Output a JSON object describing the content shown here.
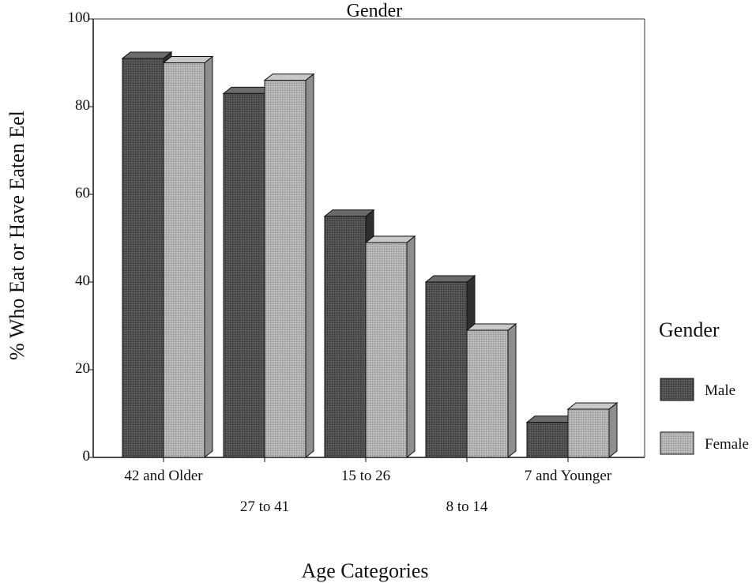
{
  "chart_data": {
    "type": "bar",
    "title": "Gender",
    "xlabel": "Age Categories",
    "ylabel": "% Who Eat or Have Eaten Eel",
    "ylim": [
      0,
      100
    ],
    "yticks": [
      "0",
      "20",
      "40",
      "60",
      "80",
      "100"
    ],
    "categories": [
      "42 and Older",
      "27 to 41",
      "15 to 26",
      "8 to 14",
      "7 and Younger"
    ],
    "series": [
      {
        "name": "Male",
        "values": [
          91,
          83,
          55,
          40,
          8
        ]
      },
      {
        "name": "Female",
        "values": [
          90,
          86,
          49,
          29,
          11
        ]
      }
    ],
    "legend": {
      "title": "Gender",
      "placement": "right"
    },
    "grid": false,
    "style": "3d-shaded"
  },
  "colors": {
    "male": "#4a4a4a",
    "female": "#aaaaaa",
    "axis": "#111111"
  }
}
